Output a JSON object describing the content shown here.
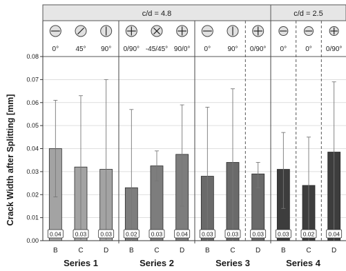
{
  "chart_data": {
    "type": "bar",
    "ylabel": "Crack Width after Splitting [mm]",
    "ylim": [
      0,
      0.08
    ],
    "yticks": [
      "0.00",
      "0.01",
      "0.02",
      "0.03",
      "0.04",
      "0.05",
      "0.06",
      "0.07",
      "0.08"
    ],
    "header_groups": [
      {
        "label": "c/d = 4.8",
        "series_span": [
          1,
          3
        ]
      },
      {
        "label": "c/d = 2.5",
        "series_span": [
          4,
          4
        ]
      }
    ],
    "groups": [
      {
        "name": "Series 1",
        "color": "#a3a3a3",
        "bars": [
          {
            "category": "B",
            "angle": "0°",
            "value": 0.04,
            "label": "0.04",
            "err_low": 0.019,
            "err_high": 0.061
          },
          {
            "category": "C",
            "angle": "45°",
            "value": 0.032,
            "label": "0.03",
            "err_low": 0.0,
            "err_high": 0.063
          },
          {
            "category": "D",
            "angle": "90°",
            "value": 0.031,
            "label": "0.03",
            "err_low": 0.0,
            "err_high": 0.07
          }
        ]
      },
      {
        "name": "Series 2",
        "color": "#7d7d7d",
        "bars": [
          {
            "category": "B",
            "angle": "0/90°",
            "value": 0.023,
            "label": "0.02",
            "err_low": 0.0,
            "err_high": 0.057
          },
          {
            "category": "C",
            "angle": "-45/45°",
            "value": 0.0325,
            "label": "0.03",
            "err_low": 0.026,
            "err_high": 0.039
          },
          {
            "category": "D",
            "angle": "90/0°",
            "value": 0.0375,
            "label": "0.04",
            "err_low": 0.015,
            "err_high": 0.059
          }
        ]
      },
      {
        "name": "Series 3",
        "color": "#6a6a6a",
        "bars": [
          {
            "category": "B",
            "angle": "0°",
            "value": 0.028,
            "label": "0.03",
            "err_low": 0.0,
            "err_high": 0.058
          },
          {
            "category": "C",
            "angle": "90°",
            "value": 0.034,
            "label": "0.03",
            "err_low": 0.0,
            "err_high": 0.066
          },
          {
            "category": "D",
            "angle": "0/90°",
            "value": 0.029,
            "label": "0.03",
            "err_low": 0.023,
            "err_high": 0.034
          }
        ]
      },
      {
        "name": "Series 4",
        "color": "#3d3d3d",
        "bars": [
          {
            "category": "B",
            "angle": "0°",
            "value": 0.031,
            "label": "0.03",
            "err_low": 0.014,
            "err_high": 0.047
          },
          {
            "category": "C",
            "angle": "0°",
            "value": 0.024,
            "label": "0.02",
            "err_low": 0.0,
            "err_high": 0.045
          },
          {
            "category": "D",
            "angle": "0/90°",
            "value": 0.0385,
            "label": "0.04",
            "err_low": 0.0,
            "err_high": 0.069
          }
        ]
      }
    ],
    "grid": "horizontal"
  }
}
